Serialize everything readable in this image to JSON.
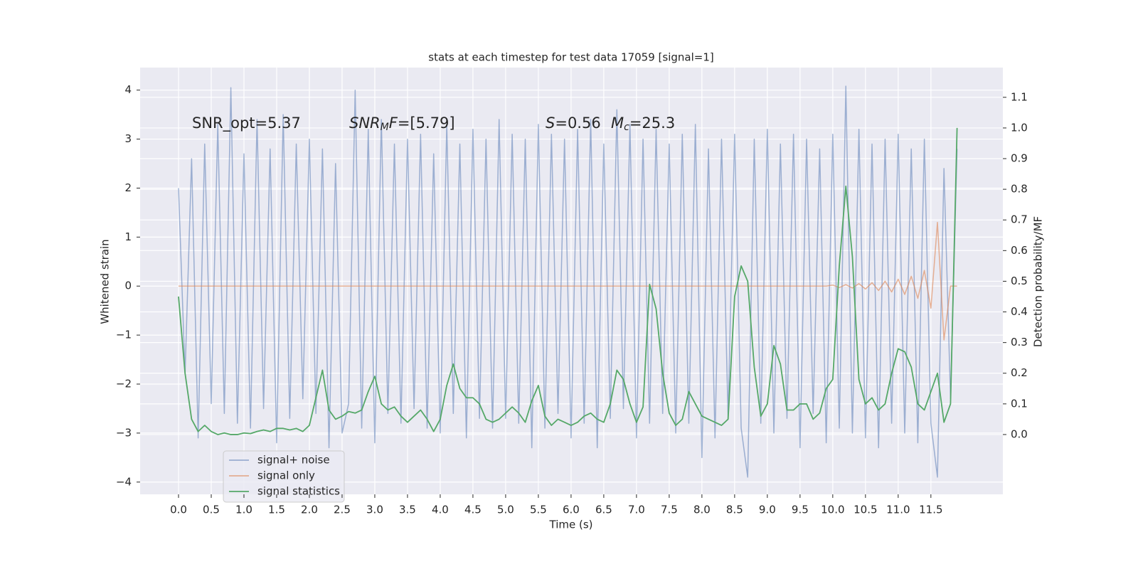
{
  "chart_data": {
    "type": "line",
    "title": "stats at each timestep for test data 17059 [signal=1]",
    "x_label": "Time (s)",
    "y_label": "Whitened strain",
    "y2_label": "Detection probability/MF",
    "annotations": [
      {
        "text": "SNR_opt=5.37"
      },
      {
        "italic": "SNR",
        "sub": "M",
        "italic_after": "F",
        "after": "=[5.79]"
      },
      {
        "italic": "S",
        "after": "=0.56"
      },
      {
        "italic": "M",
        "sub": "c",
        "after": "=25.3"
      }
    ],
    "xlim": [
      -0.587,
      12.6
    ],
    "ylim": [
      -4.25,
      4.46
    ],
    "y2lim": [
      -0.195,
      1.197
    ],
    "grid": true,
    "legend": "lower left",
    "xticks": [
      {
        "value": 0,
        "label": "0.0"
      },
      {
        "value": 0.5,
        "label": "0.5"
      },
      {
        "value": 1,
        "label": "1.0"
      },
      {
        "value": 1.5,
        "label": "1.5"
      },
      {
        "value": 2,
        "label": "2.0"
      },
      {
        "value": 2.5,
        "label": "2.5"
      },
      {
        "value": 3,
        "label": "3.0"
      },
      {
        "value": 3.5,
        "label": "3.5"
      },
      {
        "value": 4,
        "label": "4.0"
      },
      {
        "value": 4.5,
        "label": "4.5"
      },
      {
        "value": 5,
        "label": "5.0"
      },
      {
        "value": 5.5,
        "label": "5.5"
      },
      {
        "value": 6,
        "label": "6.0"
      },
      {
        "value": 6.5,
        "label": "6.5"
      },
      {
        "value": 7,
        "label": "7.0"
      },
      {
        "value": 7.5,
        "label": "7.5"
      },
      {
        "value": 8,
        "label": "8.0"
      },
      {
        "value": 8.5,
        "label": "8.5"
      },
      {
        "value": 9,
        "label": "9.0"
      },
      {
        "value": 9.5,
        "label": "9.5"
      },
      {
        "value": 10,
        "label": "10.0"
      },
      {
        "value": 10.5,
        "label": "10.5"
      },
      {
        "value": 11,
        "label": "11.0"
      },
      {
        "value": 11.5,
        "label": "11.5"
      }
    ],
    "yticks": [
      {
        "value": -4,
        "label": "−4"
      },
      {
        "value": -3,
        "label": "−3"
      },
      {
        "value": -2,
        "label": "−2"
      },
      {
        "value": -1,
        "label": "−1"
      },
      0,
      1,
      2,
      3,
      4
    ],
    "y2ticks": [
      {
        "value": 0,
        "label": "0.0"
      },
      {
        "value": 0.1,
        "label": "0.1"
      },
      {
        "value": 0.2,
        "label": "0.2"
      },
      {
        "value": 0.3,
        "label": "0.3"
      },
      {
        "value": 0.4,
        "label": "0.4"
      },
      {
        "value": 0.5,
        "label": "0.5"
      },
      {
        "value": 0.6,
        "label": "0.6"
      },
      {
        "value": 0.7,
        "label": "0.7"
      },
      {
        "value": 0.8,
        "label": "0.8"
      },
      {
        "value": 0.9,
        "label": "0.9"
      },
      {
        "value": 1,
        "label": "1.0"
      },
      {
        "value": 1.1,
        "label": "1.1"
      }
    ],
    "x": [
      0,
      0.1,
      0.2,
      0.3,
      0.4,
      0.5,
      0.6,
      0.7,
      0.8,
      0.9,
      1,
      1.1,
      1.2,
      1.3,
      1.4,
      1.5,
      1.6,
      1.7,
      1.8,
      1.9,
      2,
      2.1,
      2.2,
      2.3,
      2.4,
      2.5,
      2.6,
      2.7,
      2.8,
      2.9,
      3,
      3.1,
      3.2,
      3.3,
      3.4,
      3.5,
      3.6,
      3.7,
      3.8,
      3.9,
      4,
      4.1,
      4.2,
      4.3,
      4.4,
      4.5,
      4.6,
      4.7,
      4.8,
      4.9,
      5,
      5.1,
      5.2,
      5.3,
      5.4,
      5.5,
      5.6,
      5.7,
      5.8,
      5.9,
      6,
      6.1,
      6.2,
      6.3,
      6.4,
      6.5,
      6.6,
      6.7,
      6.8,
      6.9,
      7,
      7.1,
      7.2,
      7.3,
      7.4,
      7.5,
      7.6,
      7.7,
      7.8,
      7.9,
      8,
      8.1,
      8.2,
      8.3,
      8.4,
      8.5,
      8.6,
      8.7,
      8.8,
      8.9,
      9,
      9.1,
      9.2,
      9.3,
      9.4,
      9.5,
      9.6,
      9.7,
      9.8,
      9.9,
      10,
      10.1,
      10.2,
      10.3,
      10.4,
      10.5,
      10.6,
      10.7,
      10.8,
      10.9,
      11,
      11.1,
      11.2,
      11.3,
      11.4,
      11.5,
      11.6,
      11.7,
      11.8,
      11.9
    ],
    "series": [
      {
        "name": "signal+ noise",
        "color": "#4c72b0",
        "opacity": 0.5,
        "values": [
          2.0,
          -1.8,
          2.6,
          -3.1,
          2.9,
          -2.4,
          3.3,
          -2.6,
          4.05,
          -2.8,
          2.7,
          -2.9,
          3.4,
          -2.5,
          2.8,
          -3.2,
          3.5,
          -2.7,
          2.9,
          -2.3,
          3.0,
          -2.6,
          2.8,
          -3.3,
          2.5,
          -3.0,
          -2.4,
          4.0,
          -2.9,
          3.2,
          -3.2,
          3.4,
          -2.6,
          2.9,
          -2.8,
          3.0,
          -2.5,
          3.1,
          -2.9,
          2.7,
          -3.0,
          3.3,
          -2.6,
          2.9,
          -3.1,
          3.2,
          -2.7,
          3.0,
          -2.9,
          3.4,
          -2.7,
          3.1,
          -2.8,
          3.0,
          -3.3,
          3.3,
          -2.9,
          3.1,
          -2.6,
          3.0,
          -3.1,
          3.2,
          -2.8,
          3.4,
          -3.3,
          2.9,
          -2.7,
          3.6,
          -2.5,
          3.3,
          -3.1,
          3.0,
          -2.8,
          3.2,
          -2.6,
          2.9,
          -3.0,
          3.1,
          -2.8,
          3.3,
          -3.5,
          2.8,
          -3.1,
          3.0,
          -2.7,
          3.1,
          -2.9,
          -3.9,
          3.0,
          -2.8,
          3.2,
          -3.0,
          2.9,
          -2.7,
          3.1,
          -3.3,
          3.0,
          -2.6,
          2.8,
          -3.2,
          3.1,
          -2.9,
          4.08,
          -3.0,
          3.2,
          -3.1,
          2.9,
          -3.3,
          3.0,
          -2.8,
          3.1,
          -3.0,
          2.8,
          -3.2,
          3.0,
          -2.8,
          -3.9,
          2.4,
          -2.3,
          2.8
        ]
      },
      {
        "name": "signal only",
        "color": "#dd8452",
        "opacity": 0.6,
        "values": [
          0,
          0,
          0,
          0,
          0,
          0,
          0,
          0,
          0,
          0,
          0,
          0,
          0,
          0,
          0,
          0,
          0,
          0,
          0,
          0,
          0,
          0,
          0,
          0,
          0,
          0,
          0,
          0,
          0,
          0,
          0,
          0,
          0,
          0,
          0,
          0,
          0,
          0,
          0,
          0,
          0,
          0,
          0,
          0,
          0,
          0,
          0,
          0,
          0,
          0,
          0,
          0,
          0,
          0,
          0,
          0,
          0,
          0,
          0,
          0,
          0,
          0,
          0,
          0,
          0,
          0,
          0,
          0,
          0,
          0,
          0,
          0,
          0,
          0,
          0,
          0,
          0,
          0,
          0,
          0,
          0,
          0,
          0,
          0,
          0,
          0,
          0,
          0,
          0,
          0,
          0,
          0,
          0,
          0,
          0,
          0,
          0,
          0,
          0,
          0,
          0.02,
          -0.03,
          0.03,
          -0.04,
          0.05,
          -0.06,
          0.07,
          -0.09,
          0.1,
          -0.12,
          0.14,
          -0.17,
          0.2,
          -0.25,
          0.32,
          -0.45,
          1.3,
          -1.1,
          0,
          0
        ]
      },
      {
        "name": "signal statistics",
        "color": "#55a868",
        "axis": "y2",
        "values": [
          0.45,
          0.2,
          0.05,
          0.01,
          0.03,
          0.01,
          0,
          0.005,
          0,
          0,
          0.005,
          0.003,
          0.01,
          0.015,
          0.01,
          0.02,
          0.02,
          0.015,
          0.02,
          0.01,
          0.03,
          0.12,
          0.21,
          0.08,
          0.05,
          0.06,
          0.075,
          0.07,
          0.08,
          0.14,
          0.19,
          0.1,
          0.08,
          0.09,
          0.06,
          0.04,
          0.06,
          0.08,
          0.05,
          0.01,
          0.05,
          0.16,
          0.23,
          0.15,
          0.12,
          0.12,
          0.1,
          0.05,
          0.04,
          0.05,
          0.07,
          0.09,
          0.07,
          0.04,
          0.11,
          0.16,
          0.06,
          0.03,
          0.05,
          0.04,
          0.03,
          0.04,
          0.06,
          0.07,
          0.05,
          0.04,
          0.1,
          0.21,
          0.18,
          0.1,
          0.04,
          0.09,
          0.49,
          0.41,
          0.2,
          0.07,
          0.03,
          0.05,
          0.14,
          0.1,
          0.06,
          0.05,
          0.04,
          0.03,
          0.05,
          0.45,
          0.55,
          0.5,
          0.22,
          0.06,
          0.1,
          0.29,
          0.23,
          0.08,
          0.08,
          0.1,
          0.1,
          0.05,
          0.07,
          0.15,
          0.18,
          0.55,
          0.81,
          0.58,
          0.18,
          0.1,
          0.12,
          0.08,
          0.1,
          0.2,
          0.28,
          0.27,
          0.22,
          0.1,
          0.08,
          0.14,
          0.2,
          0.04,
          0.1,
          1.0
        ]
      }
    ]
  }
}
